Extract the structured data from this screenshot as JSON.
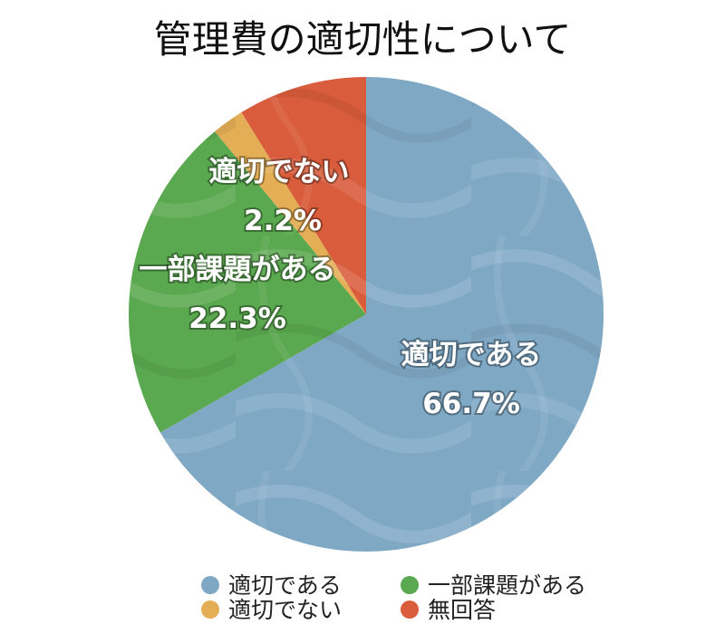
{
  "chart_data": {
    "type": "pie",
    "title": "管理費の適切性について",
    "slices": [
      {
        "name": "適切である",
        "value": 66.7,
        "label": "66.7%",
        "color": "#7fa8c5"
      },
      {
        "name": "一部課題がある",
        "value": 22.3,
        "label": "22.3%",
        "color": "#5aa84f"
      },
      {
        "name": "適切でない",
        "value": 2.2,
        "label": "2.2%",
        "color": "#e3ae55"
      },
      {
        "name": "無回答",
        "value": 8.8,
        "label": "",
        "color": "#d95c3c"
      }
    ],
    "start": "12 o'clock",
    "direction": "clockwise",
    "legend_position": "bottom"
  }
}
